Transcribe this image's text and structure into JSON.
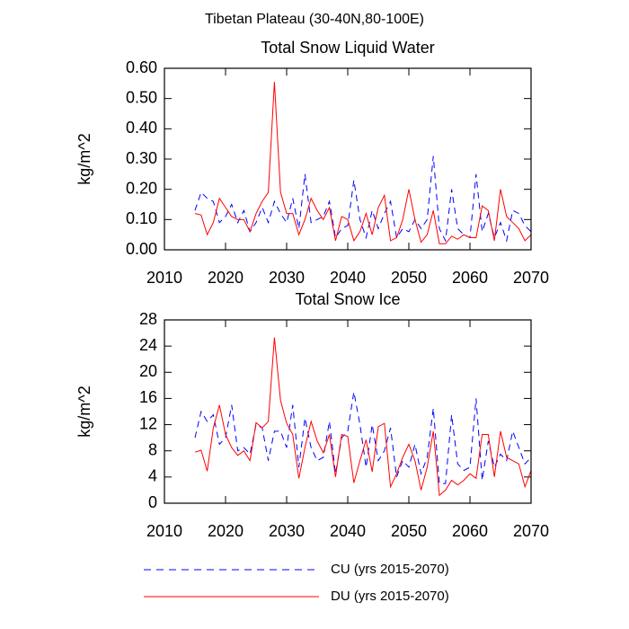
{
  "title": "Tibetan Plateau (30-40N,80-100E)",
  "chart_data": [
    {
      "type": "line",
      "title": "Total Snow Liquid Water",
      "ylabel": "kg/m^2",
      "x": [
        2015,
        2016,
        2017,
        2018,
        2019,
        2020,
        2021,
        2022,
        2023,
        2024,
        2025,
        2026,
        2027,
        2028,
        2029,
        2030,
        2031,
        2032,
        2033,
        2034,
        2035,
        2036,
        2037,
        2038,
        2039,
        2040,
        2041,
        2042,
        2043,
        2044,
        2045,
        2046,
        2047,
        2048,
        2049,
        2050,
        2051,
        2052,
        2053,
        2054,
        2055,
        2056,
        2057,
        2058,
        2059,
        2060,
        2061,
        2062,
        2063,
        2064,
        2065,
        2066,
        2067,
        2068,
        2069,
        2070
      ],
      "xlim": [
        2010,
        2070
      ],
      "xticks": [
        2010,
        2020,
        2030,
        2040,
        2050,
        2060,
        2070
      ],
      "ylim": [
        0,
        0.6
      ],
      "yticks": [
        {
          "value": 0,
          "label": "0.00"
        },
        {
          "value": 0.1,
          "label": "0.10"
        },
        {
          "value": 0.2,
          "label": "0.20"
        },
        {
          "value": 0.3,
          "label": "0.30"
        },
        {
          "value": 0.4,
          "label": "0.40"
        },
        {
          "value": 0.5,
          "label": "0.50"
        },
        {
          "value": 0.6,
          "label": "0.60"
        }
      ],
      "series": [
        {
          "name": "CU (yrs 2015-2070)",
          "color": "#0000ff",
          "style": "dashed",
          "values": [
            0.13,
            0.19,
            0.17,
            0.16,
            0.09,
            0.11,
            0.15,
            0.09,
            0.13,
            0.06,
            0.09,
            0.14,
            0.09,
            0.16,
            0.12,
            0.09,
            0.17,
            0.07,
            0.25,
            0.09,
            0.1,
            0.11,
            0.16,
            0.04,
            0.07,
            0.08,
            0.23,
            0.1,
            0.04,
            0.13,
            0.07,
            0.12,
            0.16,
            0.04,
            0.07,
            0.06,
            0.1,
            0.07,
            0.1,
            0.31,
            0.07,
            0.03,
            0.2,
            0.07,
            0.05,
            0.04,
            0.25,
            0.06,
            0.12,
            0.04,
            0.09,
            0.03,
            0.13,
            0.12,
            0.08,
            0.06
          ]
        },
        {
          "name": "DU (yrs 2015-2070)",
          "color": "#ff0000",
          "style": "solid",
          "values": [
            0.12,
            0.115,
            0.05,
            0.09,
            0.17,
            0.14,
            0.11,
            0.1,
            0.1,
            0.06,
            0.12,
            0.16,
            0.19,
            0.555,
            0.19,
            0.12,
            0.12,
            0.05,
            0.1,
            0.17,
            0.13,
            0.1,
            0.14,
            0.03,
            0.11,
            0.1,
            0.03,
            0.06,
            0.12,
            0.05,
            0.14,
            0.18,
            0.03,
            0.04,
            0.1,
            0.2,
            0.1,
            0.025,
            0.05,
            0.13,
            0.02,
            0.02,
            0.045,
            0.035,
            0.05,
            0.04,
            0.04,
            0.145,
            0.13,
            0.03,
            0.2,
            0.11,
            0.09,
            0.07,
            0.03,
            0.05
          ]
        }
      ]
    },
    {
      "type": "line",
      "title": "Total Snow Ice",
      "ylabel": "kg/m^2",
      "x": [
        2015,
        2016,
        2017,
        2018,
        2019,
        2020,
        2021,
        2022,
        2023,
        2024,
        2025,
        2026,
        2027,
        2028,
        2029,
        2030,
        2031,
        2032,
        2033,
        2034,
        2035,
        2036,
        2037,
        2038,
        2039,
        2040,
        2041,
        2042,
        2043,
        2044,
        2045,
        2046,
        2047,
        2048,
        2049,
        2050,
        2051,
        2052,
        2053,
        2054,
        2055,
        2056,
        2057,
        2058,
        2059,
        2060,
        2061,
        2062,
        2063,
        2064,
        2065,
        2066,
        2067,
        2068,
        2069,
        2070
      ],
      "xlim": [
        2010,
        2070
      ],
      "xticks": [
        2010,
        2020,
        2030,
        2040,
        2050,
        2060,
        2070
      ],
      "ylim": [
        0,
        28
      ],
      "yticks": [
        0,
        4,
        8,
        12,
        16,
        20,
        24,
        28
      ],
      "series": [
        {
          "color": "#0000ff",
          "style": "dashed",
          "values": [
            10,
            14,
            12.5,
            13.5,
            9,
            10,
            15,
            8,
            8.5,
            7.5,
            12,
            11.5,
            6.5,
            11,
            11,
            8.5,
            15,
            5.5,
            13,
            8.5,
            6.5,
            7,
            12.5,
            4.5,
            10,
            11,
            17,
            12,
            5.5,
            12,
            6.5,
            8,
            11.5,
            4,
            6.5,
            5.5,
            9,
            4.5,
            7,
            14.5,
            3,
            3,
            13.5,
            6,
            5,
            5.5,
            16,
            3.5,
            9.5,
            5.5,
            7.5,
            6.5,
            11,
            8.5,
            6,
            7
          ]
        },
        {
          "color": "#ff0000",
          "style": "solid",
          "values": [
            7.8,
            8.1,
            4.9,
            11.5,
            15,
            10.5,
            8.5,
            7.3,
            8,
            6.5,
            12.3,
            11.5,
            12.5,
            25.3,
            15.7,
            12.2,
            10.5,
            3.8,
            8.5,
            12.5,
            9.5,
            7.7,
            10.5,
            4,
            10.5,
            10.2,
            3.1,
            6.5,
            9.7,
            4.8,
            11.7,
            12.2,
            2.5,
            4.5,
            7,
            9,
            6.5,
            2,
            5.5,
            11,
            1.2,
            2,
            3.5,
            2.8,
            3.5,
            4.5,
            3.8,
            10.5,
            10.5,
            4,
            11,
            7,
            6.5,
            6,
            2.5,
            5
          ]
        }
      ]
    }
  ]
}
